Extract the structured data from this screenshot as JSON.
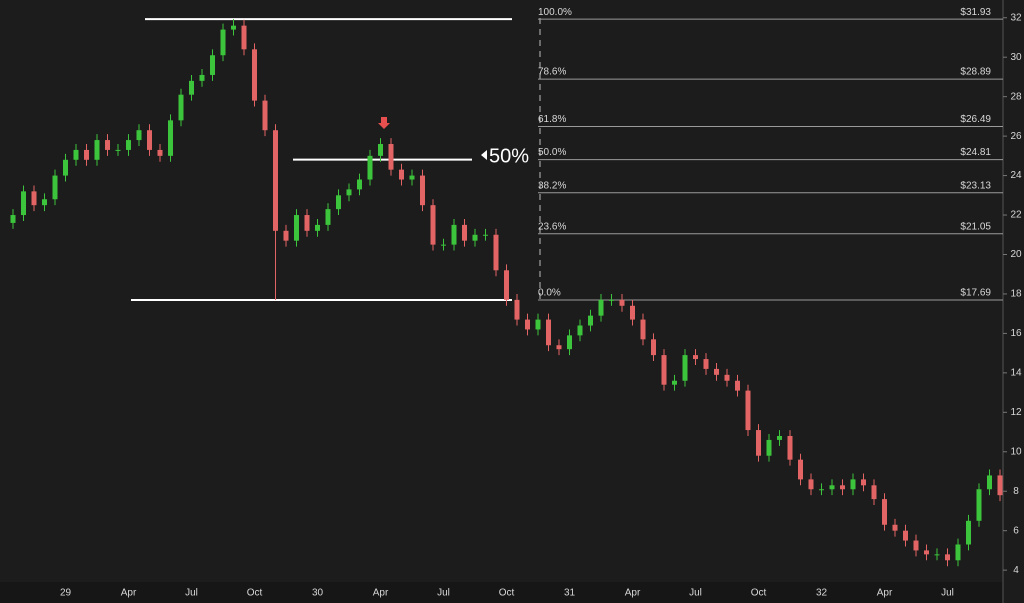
{
  "chart_data": {
    "type": "candlestick",
    "up_color": "#3cc43c",
    "down_color": "#e36464",
    "ylim": [
      3.5,
      32.9
    ],
    "yticks": [
      4,
      6,
      8,
      10,
      12,
      14,
      16,
      18,
      20,
      22,
      24,
      26,
      28,
      30,
      32
    ],
    "categories": [
      null,
      null,
      null,
      null,
      null,
      "29",
      null,
      null,
      null,
      null,
      null,
      "Apr",
      null,
      null,
      null,
      null,
      null,
      "Jul",
      null,
      null,
      null,
      null,
      null,
      "Oct",
      null,
      null,
      null,
      null,
      null,
      "30",
      null,
      null,
      null,
      null,
      null,
      "Apr",
      null,
      null,
      null,
      null,
      null,
      "Jul",
      null,
      null,
      null,
      null,
      null,
      "Oct",
      null,
      null,
      null,
      null,
      null,
      "31",
      null,
      null,
      null,
      null,
      null,
      "Apr",
      null,
      null,
      null,
      null,
      null,
      "Jul",
      null,
      null,
      null,
      null,
      null,
      "Oct",
      null,
      null,
      null,
      null,
      null,
      "32",
      null,
      null,
      null,
      null,
      null,
      "Apr",
      null,
      null,
      null,
      null,
      null,
      "Jul",
      null,
      null,
      null,
      null,
      null
    ],
    "open": [
      21.6,
      22.0,
      23.2,
      22.5,
      22.8,
      24.0,
      24.8,
      25.3,
      24.8,
      25.8,
      25.3,
      25.3,
      25.8,
      26.3,
      25.3,
      25.0,
      26.8,
      28.1,
      28.8,
      29.1,
      30.1,
      31.4,
      31.6,
      30.4,
      27.8,
      26.3,
      21.2,
      20.7,
      22.0,
      21.2,
      21.5,
      22.3,
      23.0,
      23.3,
      23.8,
      25.0,
      25.6,
      24.3,
      23.8,
      24.0,
      22.5,
      20.5,
      20.5,
      21.5,
      20.7,
      21.0,
      21.0,
      19.2,
      17.7,
      16.7,
      16.2,
      16.7,
      15.4,
      15.2,
      15.9,
      16.4,
      16.9,
      17.7,
      17.7,
      17.4,
      16.7,
      15.7,
      14.9,
      13.4,
      13.6,
      14.9,
      14.7,
      14.2,
      13.9,
      13.6,
      13.1,
      11.1,
      9.8,
      10.6,
      10.8,
      9.6,
      8.6,
      8.1,
      8.1,
      8.3,
      8.1,
      8.6,
      8.3,
      7.6,
      6.3,
      6.0,
      5.5,
      5.0,
      4.8,
      4.8,
      4.5,
      5.3,
      6.5,
      8.1,
      8.8
    ],
    "high": [
      22.3,
      23.5,
      23.5,
      23.1,
      24.3,
      25.1,
      25.6,
      25.6,
      26.1,
      26.1,
      25.6,
      26.1,
      26.6,
      26.6,
      25.6,
      27.1,
      28.4,
      29.1,
      29.4,
      30.4,
      31.7,
      31.93,
      31.9,
      30.7,
      28.1,
      26.6,
      21.5,
      22.3,
      22.3,
      21.8,
      22.6,
      23.3,
      23.6,
      24.1,
      25.3,
      25.9,
      25.9,
      24.6,
      24.3,
      24.3,
      22.8,
      20.8,
      21.8,
      21.8,
      21.3,
      21.3,
      21.3,
      19.5,
      18.0,
      17.0,
      17.0,
      17.0,
      15.7,
      16.2,
      16.7,
      17.2,
      18.0,
      18.0,
      18.0,
      17.7,
      17.0,
      16.0,
      15.2,
      13.9,
      15.2,
      15.2,
      15.0,
      14.5,
      14.2,
      13.9,
      13.4,
      11.4,
      10.9,
      11.1,
      11.1,
      9.9,
      8.9,
      8.4,
      8.6,
      8.6,
      8.9,
      8.9,
      8.6,
      7.9,
      6.6,
      6.3,
      5.8,
      5.3,
      5.1,
      5.1,
      5.6,
      6.8,
      8.4,
      9.1,
      9.1
    ],
    "low": [
      21.3,
      21.7,
      22.2,
      22.2,
      22.5,
      23.7,
      24.5,
      24.5,
      24.5,
      25.0,
      25.0,
      25.0,
      25.5,
      25.0,
      24.7,
      24.7,
      26.5,
      27.8,
      28.5,
      28.8,
      29.8,
      31.1,
      30.1,
      27.5,
      26.0,
      17.69,
      20.4,
      20.4,
      20.9,
      20.9,
      21.2,
      22.0,
      22.7,
      23.0,
      23.5,
      24.7,
      24.0,
      23.5,
      23.5,
      22.2,
      20.2,
      20.2,
      20.2,
      20.4,
      20.4,
      20.7,
      18.9,
      17.4,
      16.4,
      15.9,
      15.9,
      15.1,
      14.9,
      14.9,
      15.6,
      16.1,
      16.6,
      17.4,
      17.1,
      16.4,
      15.4,
      14.6,
      13.1,
      13.1,
      13.3,
      14.4,
      13.9,
      13.6,
      13.3,
      12.8,
      10.8,
      9.5,
      9.5,
      10.3,
      9.3,
      8.3,
      7.8,
      7.8,
      7.8,
      7.8,
      7.8,
      8.0,
      7.3,
      6.0,
      5.7,
      5.2,
      4.7,
      4.5,
      4.5,
      4.2,
      4.2,
      5.0,
      6.2,
      7.8,
      7.5
    ],
    "close": [
      22.0,
      23.2,
      22.5,
      22.8,
      24.0,
      24.8,
      25.3,
      24.8,
      25.8,
      25.3,
      25.3,
      25.8,
      26.3,
      25.3,
      25.0,
      26.8,
      28.1,
      28.8,
      29.1,
      30.1,
      31.4,
      31.6,
      30.4,
      27.8,
      26.3,
      21.2,
      20.7,
      22.0,
      21.2,
      21.5,
      22.3,
      23.0,
      23.3,
      23.8,
      25.0,
      25.6,
      24.3,
      23.8,
      24.0,
      22.5,
      20.5,
      20.5,
      21.5,
      20.7,
      21.0,
      21.0,
      19.2,
      17.7,
      16.7,
      16.2,
      16.7,
      15.4,
      15.2,
      15.9,
      16.4,
      16.9,
      17.7,
      17.7,
      17.4,
      16.7,
      15.7,
      14.9,
      13.4,
      13.6,
      14.9,
      14.7,
      14.2,
      13.9,
      13.6,
      13.1,
      11.1,
      9.8,
      10.6,
      10.8,
      9.6,
      8.6,
      8.1,
      8.1,
      8.3,
      8.1,
      8.6,
      8.3,
      7.6,
      6.3,
      6.0,
      5.5,
      5.0,
      4.8,
      4.8,
      4.5,
      5.3,
      6.5,
      8.1,
      8.8,
      7.8
    ],
    "fib_levels": [
      {
        "value": 31.93,
        "ratio": "100.0%",
        "label": "$31.93"
      },
      {
        "value": 28.89,
        "ratio": "78.6%",
        "label": "$28.89"
      },
      {
        "value": 26.49,
        "ratio": "61.8%",
        "label": "$26.49"
      },
      {
        "value": 24.81,
        "ratio": "50.0%",
        "label": "$24.81"
      },
      {
        "value": 23.13,
        "ratio": "38.2%",
        "label": "$23.13"
      },
      {
        "value": 21.05,
        "ratio": "23.6%",
        "label": "$21.05"
      },
      {
        "value": 17.69,
        "ratio": "0.0%",
        "label": "$17.69"
      }
    ],
    "annotation": "50%"
  }
}
